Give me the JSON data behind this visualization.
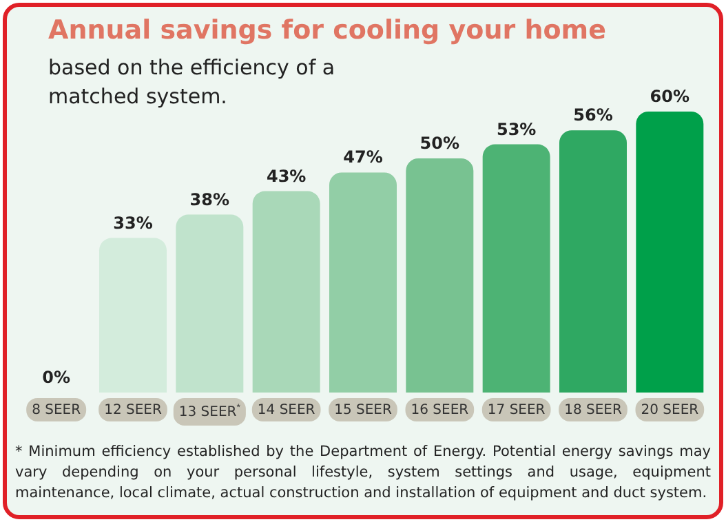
{
  "chart_data": {
    "type": "bar",
    "title": "Annual savings for cooling your home",
    "subtitle": "based on the efficiency of a matched system.",
    "categories": [
      "8 SEER",
      "12 SEER",
      "13 SEER$^{*}$",
      "14 SEER",
      "15 SEER",
      "16 SEER",
      "17 SEER",
      "18 SEER",
      "20 SEER"
    ],
    "values": [
      0,
      33,
      38,
      43,
      47,
      50,
      53,
      56,
      60
    ],
    "value_labels": [
      "0%",
      "33%",
      "38%",
      "43%",
      "47%",
      "50%",
      "53%",
      "56%",
      "60%"
    ],
    "colors": [
      "#d3ecdc",
      "#d3ecdc",
      "#c0e3cc",
      "#a9d8b8",
      "#92cea6",
      "#78c291",
      "#4db374",
      "#2fa862",
      "#00a04a"
    ],
    "annotations": [
      "* Minimum efficiency established by the Department of Energy. Potential energy savings may vary depending on your personal lifestyle, system settings and usage, equipment maintenance, local climate, actual construction and installation of equipment and duct system."
    ]
  }
}
